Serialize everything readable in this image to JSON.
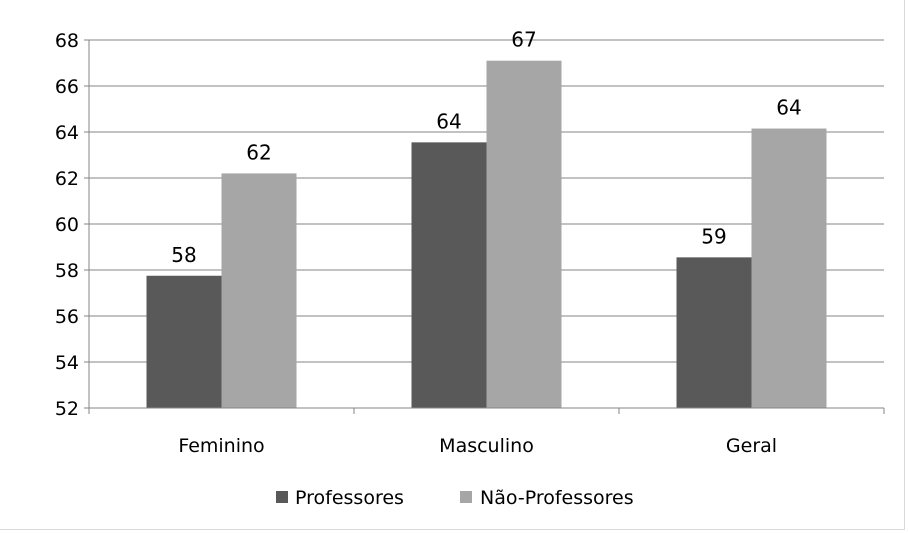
{
  "chart_data": {
    "type": "bar",
    "categories": [
      "Feminino",
      "Masculino",
      "Geral"
    ],
    "series": [
      {
        "name": "Professores",
        "values": [
          57.75,
          63.55,
          58.55
        ],
        "labels": [
          "58",
          "64",
          "59"
        ],
        "color": "#595959"
      },
      {
        "name": "Não-Professores",
        "values": [
          62.2,
          67.1,
          64.15
        ],
        "labels": [
          "62",
          "67",
          "64"
        ],
        "color": "#a6a6a6"
      }
    ],
    "yticks": [
      "52",
      "54",
      "56",
      "58",
      "60",
      "62",
      "64",
      "66",
      "68"
    ],
    "ylim": [
      52,
      68
    ],
    "grid": true,
    "legend": "bottom",
    "title": "",
    "xlabel": "",
    "ylabel": ""
  }
}
